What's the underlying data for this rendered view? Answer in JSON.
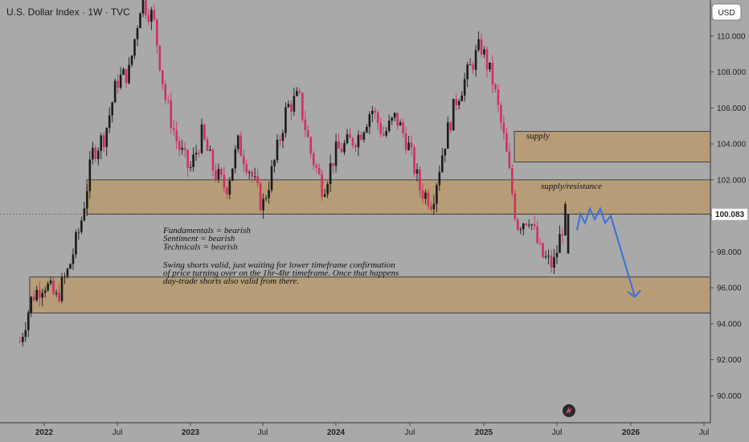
{
  "header": {
    "title": "U.S. Dollar Index · 1W · TVC",
    "currency": "USD"
  },
  "colors": {
    "up": "#1b1b1b",
    "down": "#d0305f",
    "zone_fill": "#b89a6e",
    "zone_border": "#2b2b2b",
    "projection": "#3a6fdc",
    "current_label_bg": "#ffffff",
    "background": "#a9a9a9"
  },
  "chart_data": {
    "type": "candlestick",
    "title": "U.S. Dollar Index · 1W · TVC",
    "ylim": [
      88.5,
      112.0
    ],
    "y_ticks": [
      "90.000",
      "92.000",
      "94.000",
      "96.000",
      "98.000",
      "100.000",
      "102.000",
      "104.000",
      "106.000",
      "108.000",
      "110.000"
    ],
    "x_ticks": [
      "2022",
      "Jul",
      "2023",
      "Jul",
      "2024",
      "Jul",
      "2025",
      "Jul",
      "2026",
      "Jul"
    ],
    "current_price": "100.083",
    "path": [
      [
        "2021-11",
        93.0
      ],
      [
        "2021-12",
        95.5
      ],
      [
        "2022-01",
        96.3
      ],
      [
        "2022-02",
        95.4
      ],
      [
        "2022-03",
        97.0
      ],
      [
        "2022-04",
        99.5
      ],
      [
        "2022-05",
        103.5
      ],
      [
        "2022-06",
        104.5
      ],
      [
        "2022-07",
        107.5
      ],
      [
        "2022-08",
        108.0
      ],
      [
        "2022-09",
        112.0
      ],
      [
        "2022-10",
        111.0
      ],
      [
        "2022-11",
        106.5
      ],
      [
        "2022-12",
        104.0
      ],
      [
        "2023-01",
        102.5
      ],
      [
        "2023-02",
        104.5
      ],
      [
        "2023-03",
        102.5
      ],
      [
        "2023-04",
        101.5
      ],
      [
        "2023-05",
        104.0
      ],
      [
        "2023-06",
        102.5
      ],
      [
        "2023-07",
        100.5
      ],
      [
        "2023-08",
        103.0
      ],
      [
        "2023-09",
        106.0
      ],
      [
        "2023-10",
        106.6
      ],
      [
        "2023-11",
        103.5
      ],
      [
        "2023-12",
        101.5
      ],
      [
        "2024-01",
        103.5
      ],
      [
        "2024-02",
        104.0
      ],
      [
        "2024-03",
        104.5
      ],
      [
        "2024-04",
        106.0
      ],
      [
        "2024-05",
        104.5
      ],
      [
        "2024-06",
        105.5
      ],
      [
        "2024-07",
        104.0
      ],
      [
        "2024-08",
        101.5
      ],
      [
        "2024-09",
        100.8
      ],
      [
        "2024-10",
        104.0
      ],
      [
        "2024-11",
        106.5
      ],
      [
        "2024-12",
        108.0
      ],
      [
        "2025-01",
        109.5
      ],
      [
        "2025-02",
        107.5
      ],
      [
        "2025-03",
        104.0
      ],
      [
        "2025-04",
        99.5
      ],
      [
        "2025-05",
        100.0
      ],
      [
        "2025-06",
        97.8
      ],
      [
        "2025-07",
        97.2
      ],
      [
        "2025-08",
        100.1
      ]
    ],
    "zones": [
      {
        "label": "supply",
        "from": 103.0,
        "to": 104.7
      },
      {
        "label": "supply/resistance",
        "from": 100.1,
        "to": 102.0
      },
      {
        "label": "",
        "from": 94.6,
        "to": 96.6
      }
    ],
    "projection": [
      [
        "2025-08",
        99.2
      ],
      [
        "2025-08",
        100.1
      ],
      [
        "2025-09",
        99.6
      ],
      [
        "2025-09",
        100.4
      ],
      [
        "2025-10",
        99.8
      ],
      [
        "2025-10",
        100.4
      ],
      [
        "2025-11",
        99.6
      ],
      [
        "2025-11",
        100.0
      ],
      [
        "2026-01",
        95.5
      ]
    ],
    "annotation": [
      "Fundamentals = bearish",
      "Sentiment = bearish",
      "Technicals = bearish",
      "",
      "Swing shorts valid, just waiting for lower timeframe confirmation",
      "of price turning over on the 1hr-4hr timeframe. Once that happens",
      "day-trade shorts also valid from there."
    ]
  }
}
